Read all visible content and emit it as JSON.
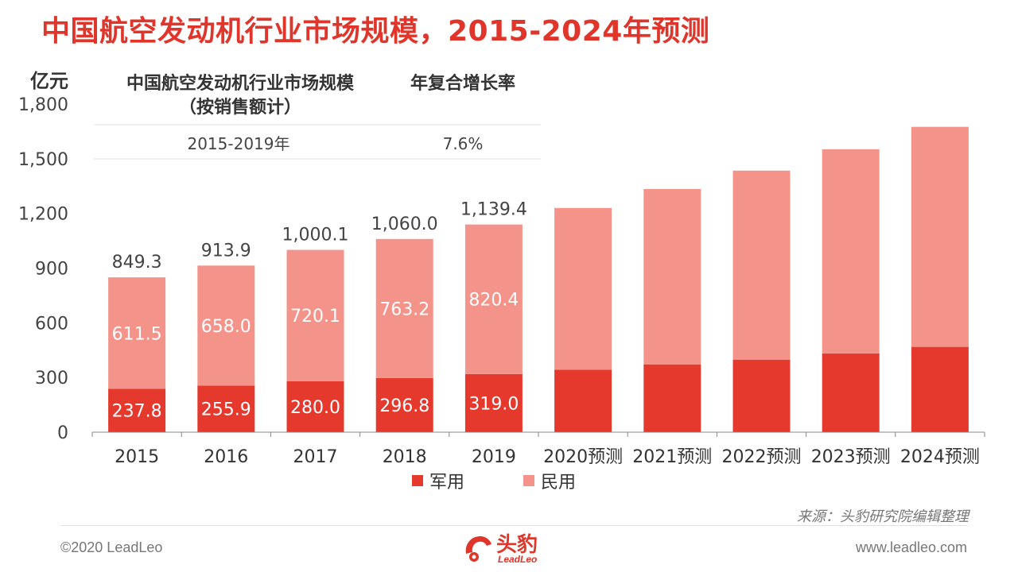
{
  "title": "中国航空发动机行业市场规模，2015-2024年预测",
  "colors": {
    "title": "#e0352b",
    "military": "#e4392c",
    "civil": "#f4938a"
  },
  "table": {
    "col1_header_line1": "中国航空发动机行业市场规模",
    "col1_header_line2": "（按销售额计）",
    "col2_header": "年复合增长率",
    "row_period": "2015-2019年",
    "row_cagr": "7.6%"
  },
  "chart_data": {
    "type": "bar",
    "stacked": true,
    "ylabel": "亿元",
    "ylim": [
      0,
      1800
    ],
    "yticks": [
      "0",
      "300",
      "600",
      "900",
      "1,200",
      "1,500",
      "1,800"
    ],
    "ytick_values": [
      0,
      300,
      600,
      900,
      1200,
      1500,
      1800
    ],
    "categories": [
      "2015",
      "2016",
      "2017",
      "2018",
      "2019",
      "2020预测",
      "2021预测",
      "2022预测",
      "2023预测",
      "2024预测"
    ],
    "series": [
      {
        "name": "军用",
        "values": [
          237.8,
          255.9,
          280.0,
          296.8,
          319.0,
          343,
          372,
          398,
          432,
          468
        ],
        "labels": [
          "237.8",
          "255.9",
          "280.0",
          "296.8",
          "319.0",
          "",
          "",
          "",
          "",
          ""
        ]
      },
      {
        "name": "民用",
        "values": [
          611.5,
          658.0,
          720.1,
          763.2,
          820.4,
          887,
          962,
          1037,
          1120,
          1207
        ],
        "labels": [
          "611.5",
          "658.0",
          "720.1",
          "763.2",
          "820.4",
          "",
          "",
          "",
          "",
          ""
        ]
      }
    ],
    "totals": [
      "849.3",
      "913.9",
      "1,000.1",
      "1,060.0",
      "1,139.4",
      "",
      "",
      "",
      "",
      ""
    ],
    "grid": false,
    "legend": "bottom"
  },
  "footer": {
    "source": "来源：头豹研究院编辑整理",
    "copyright": "©2020 LeadLeo",
    "url": "www.leadleo.com",
    "logo_text": "头豹",
    "logo_sub": "LeadLeo"
  }
}
